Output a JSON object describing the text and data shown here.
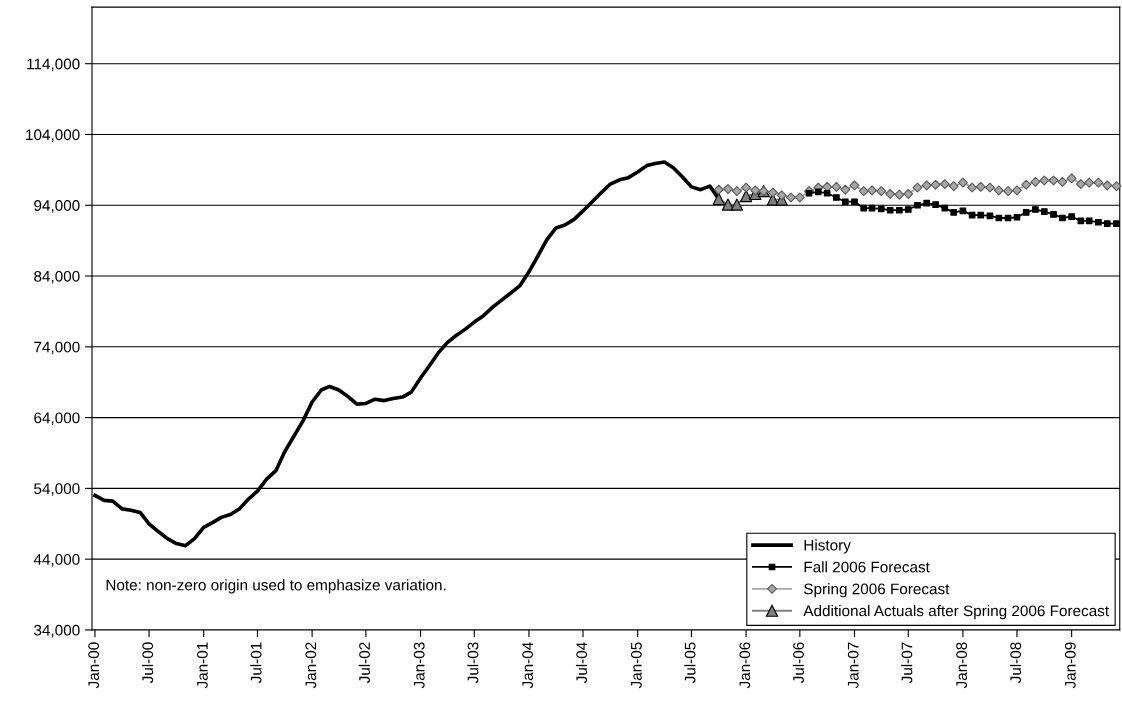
{
  "chart_data": {
    "type": "line",
    "annotations": [
      "Note: non-zero origin used to emphasize variation."
    ],
    "xlim": [
      "1999-12-22",
      "2009-06-12"
    ],
    "xticks": [
      {
        "value": "2000-01",
        "label": "Jan-00"
      },
      {
        "value": "2000-07",
        "label": "Jul-00"
      },
      {
        "value": "2001-01",
        "label": "Jan-01"
      },
      {
        "value": "2001-07",
        "label": "Jul-01"
      },
      {
        "value": "2002-01",
        "label": "Jan-02"
      },
      {
        "value": "2002-07",
        "label": "Jul-02"
      },
      {
        "value": "2003-01",
        "label": "Jan-03"
      },
      {
        "value": "2003-07",
        "label": "Jul-03"
      },
      {
        "value": "2004-01",
        "label": "Jan-04"
      },
      {
        "value": "2004-07",
        "label": "Jul-04"
      },
      {
        "value": "2005-01",
        "label": "Jan-05"
      },
      {
        "value": "2005-07",
        "label": "Jul-05"
      },
      {
        "value": "2006-01",
        "label": "Jan-06"
      },
      {
        "value": "2006-07",
        "label": "Jul-06"
      },
      {
        "value": "2007-01",
        "label": "Jan-07"
      },
      {
        "value": "2007-07",
        "label": "Jul-07"
      },
      {
        "value": "2008-01",
        "label": "Jan-08"
      },
      {
        "value": "2008-07",
        "label": "Jul-08"
      },
      {
        "value": "2009-01",
        "label": "Jan-09"
      }
    ],
    "ylim": [
      34000,
      122000
    ],
    "yticks": [
      {
        "value": 34000,
        "label": "34,000"
      },
      {
        "value": 44000,
        "label": "44,000"
      },
      {
        "value": 54000,
        "label": "54,000"
      },
      {
        "value": 64000,
        "label": "64,000"
      },
      {
        "value": 74000,
        "label": "74,000"
      },
      {
        "value": 84000,
        "label": "84,000"
      },
      {
        "value": 94000,
        "label": "94,000"
      },
      {
        "value": 104000,
        "label": "104,000"
      },
      {
        "value": 114000,
        "label": "114,000"
      }
    ],
    "grid": "y",
    "legend": "bottom right",
    "series": [
      {
        "name": "History",
        "color": "#000000",
        "marker": "none",
        "x": [
          "2000-01",
          "2000-02",
          "2000-03",
          "2000-04",
          "2000-05",
          "2000-06",
          "2000-07",
          "2000-08",
          "2000-09",
          "2000-10",
          "2000-11",
          "2000-12",
          "2001-01",
          "2001-02",
          "2001-03",
          "2001-04",
          "2001-05",
          "2001-06",
          "2001-07",
          "2001-08",
          "2001-09",
          "2001-10",
          "2001-11",
          "2001-12",
          "2002-01",
          "2002-02",
          "2002-03",
          "2002-04",
          "2002-05",
          "2002-06",
          "2002-07",
          "2002-08",
          "2002-09",
          "2002-10",
          "2002-11",
          "2002-12",
          "2003-01",
          "2003-02",
          "2003-03",
          "2003-04",
          "2003-05",
          "2003-06",
          "2003-07",
          "2003-08",
          "2003-09",
          "2003-10",
          "2003-11",
          "2003-12",
          "2004-01",
          "2004-02",
          "2004-03",
          "2004-04",
          "2004-05",
          "2004-06",
          "2004-07",
          "2004-08",
          "2004-09",
          "2004-10",
          "2004-11",
          "2004-12",
          "2005-01",
          "2005-02",
          "2005-03",
          "2005-04",
          "2005-05",
          "2005-06",
          "2005-07",
          "2005-08",
          "2005-09",
          "2005-10"
        ],
        "values": [
          53000,
          52300,
          52200,
          51100,
          50900,
          50600,
          49000,
          47900,
          46900,
          46200,
          45900,
          46900,
          48500,
          49200,
          49900,
          50300,
          51100,
          52500,
          53600,
          55300,
          56500,
          59200,
          61400,
          63500,
          66200,
          67900,
          68400,
          67900,
          67000,
          65900,
          66000,
          66600,
          66400,
          66700,
          66900,
          67600,
          69600,
          71400,
          73100,
          74600,
          75600,
          76500,
          77500,
          78400,
          79600,
          80600,
          81600,
          82600,
          84600,
          86900,
          89100,
          90800,
          91200,
          92000,
          93200,
          94500,
          95800,
          97000,
          97600,
          97900,
          98700,
          99600,
          99900,
          100100,
          99300,
          98000,
          96600,
          96200,
          96700,
          94900
        ]
      },
      {
        "name": "Fall 2006 Forecast",
        "color": "#000000",
        "marker": "square",
        "x": [
          "2006-08",
          "2006-09",
          "2006-10",
          "2006-11",
          "2006-12",
          "2007-01",
          "2007-02",
          "2007-03",
          "2007-04",
          "2007-05",
          "2007-06",
          "2007-07",
          "2007-08",
          "2007-09",
          "2007-10",
          "2007-11",
          "2007-12",
          "2008-01",
          "2008-02",
          "2008-03",
          "2008-04",
          "2008-05",
          "2008-06",
          "2008-07",
          "2008-08",
          "2008-09",
          "2008-10",
          "2008-11",
          "2008-12",
          "2009-01",
          "2009-02",
          "2009-03",
          "2009-04",
          "2009-05",
          "2009-06"
        ],
        "values": [
          95700,
          95900,
          95700,
          95100,
          94500,
          94500,
          93600,
          93600,
          93500,
          93300,
          93300,
          93400,
          94000,
          94300,
          94100,
          93600,
          93000,
          93200,
          92600,
          92600,
          92500,
          92200,
          92200,
          92300,
          93000,
          93400,
          93100,
          92700,
          92200,
          92400,
          91800,
          91800,
          91600,
          91400,
          91400
        ]
      },
      {
        "name": "Spring 2006 Forecast",
        "color": "#a6a6a6",
        "marker": "diamond",
        "x": [
          "2005-10",
          "2005-11",
          "2005-12",
          "2006-01",
          "2006-02",
          "2006-03",
          "2006-04",
          "2006-05",
          "2006-06",
          "2006-07",
          "2006-08",
          "2006-09",
          "2006-10",
          "2006-11",
          "2006-12",
          "2007-01",
          "2007-02",
          "2007-03",
          "2007-04",
          "2007-05",
          "2007-06",
          "2007-07",
          "2007-08",
          "2007-09",
          "2007-10",
          "2007-11",
          "2007-12",
          "2008-01",
          "2008-02",
          "2008-03",
          "2008-04",
          "2008-05",
          "2008-06",
          "2008-07",
          "2008-08",
          "2008-09",
          "2008-10",
          "2008-11",
          "2008-12",
          "2009-01",
          "2009-02",
          "2009-03",
          "2009-04",
          "2009-05",
          "2009-06"
        ],
        "values": [
          96200,
          96300,
          96000,
          96500,
          96100,
          96000,
          95800,
          95400,
          95100,
          95100,
          96000,
          96500,
          96600,
          96600,
          96200,
          96800,
          96000,
          96100,
          96000,
          95600,
          95500,
          95600,
          96500,
          96800,
          96900,
          97000,
          96700,
          97200,
          96500,
          96600,
          96500,
          96100,
          96000,
          96100,
          96900,
          97300,
          97500,
          97500,
          97300,
          97800,
          97000,
          97200,
          97200,
          96800,
          96700
        ]
      },
      {
        "name": "Additional Actuals after Spring 2006 Forecast",
        "color": "#808080",
        "marker": "triangle",
        "x": [
          "2005-10",
          "2005-11",
          "2005-12",
          "2006-01",
          "2006-02",
          "2006-03",
          "2006-04",
          "2006-05"
        ],
        "values": [
          94900,
          94100,
          94100,
          95300,
          95600,
          96000,
          94800,
          94800
        ]
      }
    ]
  }
}
